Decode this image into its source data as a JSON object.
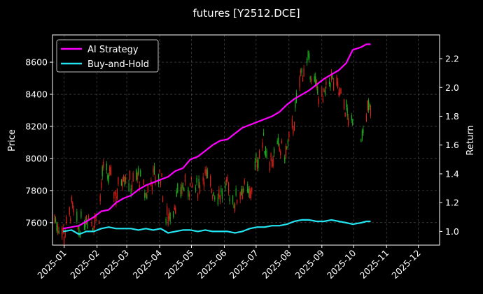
{
  "chart_data": {
    "type": "line",
    "title": "futures [Y2512.DCE]",
    "ylabel_left": "Price",
    "ylabel_right": "Return",
    "x_ticks": [
      "2025-01",
      "2025-02",
      "2025-03",
      "2025-04",
      "2025-05",
      "2025-06",
      "2025-07",
      "2025-08",
      "2025-09",
      "2025-10",
      "2025-11",
      "2025-12"
    ],
    "xlim": [
      "2024-12-21",
      "2025-12-21"
    ],
    "y_left": {
      "lim": [
        7460,
        8770
      ],
      "ticks": [
        7600,
        7800,
        8000,
        8200,
        8400,
        8600
      ]
    },
    "y_right": {
      "lim": [
        0.905,
        2.365
      ],
      "ticks": [
        "1.0",
        "1.2",
        "1.4",
        "1.6",
        "1.8",
        "2.0",
        "2.2"
      ]
    },
    "grid": true,
    "legend_position": "top-left",
    "candles": {
      "up_color": "#1db21d",
      "down_color": "#e0241a",
      "anchors": [
        [
          "2024-12-21",
          7650
        ],
        [
          "2025-01-01",
          7520
        ],
        [
          "2025-01-08",
          7690
        ],
        [
          "2025-01-14",
          7560
        ],
        [
          "2025-01-22",
          7650
        ],
        [
          "2025-01-28",
          7600
        ],
        [
          "2025-02-03",
          7650
        ],
        [
          "2025-02-06",
          7920
        ],
        [
          "2025-02-13",
          7880
        ],
        [
          "2025-02-19",
          7770
        ],
        [
          "2025-02-26",
          7920
        ],
        [
          "2025-03-05",
          7830
        ],
        [
          "2025-03-12",
          7890
        ],
        [
          "2025-03-19",
          7770
        ],
        [
          "2025-03-26",
          7880
        ],
        [
          "2025-04-02",
          7900
        ],
        [
          "2025-04-07",
          7620
        ],
        [
          "2025-04-14",
          7700
        ],
        [
          "2025-04-22",
          7820
        ],
        [
          "2025-04-29",
          7820
        ],
        [
          "2025-05-06",
          7810
        ],
        [
          "2025-05-13",
          7900
        ],
        [
          "2025-05-21",
          7800
        ],
        [
          "2025-05-28",
          7780
        ],
        [
          "2025-06-04",
          7810
        ],
        [
          "2025-06-11",
          7730
        ],
        [
          "2025-06-18",
          7820
        ],
        [
          "2025-06-25",
          7760
        ],
        [
          "2025-07-02",
          8000
        ],
        [
          "2025-07-08",
          8100
        ],
        [
          "2025-07-15",
          7990
        ],
        [
          "2025-07-22",
          8060
        ],
        [
          "2025-07-29",
          8030
        ],
        [
          "2025-08-05",
          8200
        ],
        [
          "2025-08-12",
          8520
        ],
        [
          "2025-08-19",
          8600
        ],
        [
          "2025-08-26",
          8450
        ],
        [
          "2025-09-02",
          8350
        ],
        [
          "2025-09-09",
          8500
        ],
        [
          "2025-09-16",
          8420
        ],
        [
          "2025-09-23",
          8320
        ],
        [
          "2025-09-29",
          8200
        ],
        [
          "2025-10-08",
          8150
        ],
        [
          "2025-10-13",
          8310
        ],
        [
          "2025-10-17",
          8290
        ]
      ],
      "gaps": [
        [
          "2025-10-01",
          "2025-10-07"
        ]
      ]
    },
    "series": [
      {
        "name": "AI Strategy",
        "color": "#ff00ff",
        "points": [
          [
            "2024-12-31",
            1.02
          ],
          [
            "2025-01-08",
            1.03
          ],
          [
            "2025-01-15",
            1.04
          ],
          [
            "2025-01-22",
            1.07
          ],
          [
            "2025-01-29",
            1.1
          ],
          [
            "2025-02-05",
            1.14
          ],
          [
            "2025-02-12",
            1.15
          ],
          [
            "2025-02-19",
            1.2
          ],
          [
            "2025-02-26",
            1.23
          ],
          [
            "2025-03-05",
            1.25
          ],
          [
            "2025-03-12",
            1.29
          ],
          [
            "2025-03-19",
            1.32
          ],
          [
            "2025-03-26",
            1.34
          ],
          [
            "2025-04-02",
            1.36
          ],
          [
            "2025-04-09",
            1.38
          ],
          [
            "2025-04-16",
            1.42
          ],
          [
            "2025-04-23",
            1.44
          ],
          [
            "2025-04-30",
            1.5
          ],
          [
            "2025-05-07",
            1.52
          ],
          [
            "2025-05-14",
            1.56
          ],
          [
            "2025-05-21",
            1.6
          ],
          [
            "2025-05-28",
            1.63
          ],
          [
            "2025-06-04",
            1.64
          ],
          [
            "2025-06-11",
            1.68
          ],
          [
            "2025-06-18",
            1.72
          ],
          [
            "2025-06-25",
            1.74
          ],
          [
            "2025-07-02",
            1.76
          ],
          [
            "2025-07-09",
            1.78
          ],
          [
            "2025-07-16",
            1.8
          ],
          [
            "2025-07-23",
            1.83
          ],
          [
            "2025-07-30",
            1.88
          ],
          [
            "2025-08-06",
            1.92
          ],
          [
            "2025-08-13",
            1.95
          ],
          [
            "2025-08-20",
            1.98
          ],
          [
            "2025-08-27",
            2.02
          ],
          [
            "2025-09-03",
            2.06
          ],
          [
            "2025-09-10",
            2.09
          ],
          [
            "2025-09-17",
            2.12
          ],
          [
            "2025-09-24",
            2.17
          ],
          [
            "2025-09-30",
            2.26
          ],
          [
            "2025-10-08",
            2.28
          ],
          [
            "2025-10-13",
            2.3
          ],
          [
            "2025-10-17",
            2.3
          ]
        ]
      },
      {
        "name": "Buy-and-Hold",
        "color": "#22e4f0",
        "points": [
          [
            "2024-12-31",
            1.0
          ],
          [
            "2025-01-08",
            1.01
          ],
          [
            "2025-01-15",
            0.98
          ],
          [
            "2025-01-22",
            1.0
          ],
          [
            "2025-01-29",
            1.0
          ],
          [
            "2025-02-05",
            1.02
          ],
          [
            "2025-02-12",
            1.03
          ],
          [
            "2025-02-19",
            1.02
          ],
          [
            "2025-02-26",
            1.02
          ],
          [
            "2025-03-05",
            1.02
          ],
          [
            "2025-03-12",
            1.01
          ],
          [
            "2025-03-19",
            1.02
          ],
          [
            "2025-03-26",
            1.01
          ],
          [
            "2025-04-02",
            1.02
          ],
          [
            "2025-04-09",
            0.99
          ],
          [
            "2025-04-16",
            1.0
          ],
          [
            "2025-04-23",
            1.01
          ],
          [
            "2025-04-30",
            1.01
          ],
          [
            "2025-05-07",
            1.0
          ],
          [
            "2025-05-14",
            1.01
          ],
          [
            "2025-05-21",
            1.0
          ],
          [
            "2025-05-28",
            1.0
          ],
          [
            "2025-06-04",
            1.0
          ],
          [
            "2025-06-11",
            0.99
          ],
          [
            "2025-06-18",
            1.0
          ],
          [
            "2025-06-25",
            1.02
          ],
          [
            "2025-07-02",
            1.03
          ],
          [
            "2025-07-09",
            1.03
          ],
          [
            "2025-07-16",
            1.04
          ],
          [
            "2025-07-23",
            1.04
          ],
          [
            "2025-07-30",
            1.05
          ],
          [
            "2025-08-06",
            1.07
          ],
          [
            "2025-08-13",
            1.08
          ],
          [
            "2025-08-20",
            1.08
          ],
          [
            "2025-08-27",
            1.07
          ],
          [
            "2025-09-03",
            1.07
          ],
          [
            "2025-09-10",
            1.08
          ],
          [
            "2025-09-17",
            1.07
          ],
          [
            "2025-09-24",
            1.06
          ],
          [
            "2025-09-30",
            1.05
          ],
          [
            "2025-10-08",
            1.06
          ],
          [
            "2025-10-13",
            1.07
          ],
          [
            "2025-10-17",
            1.07
          ]
        ]
      }
    ]
  }
}
